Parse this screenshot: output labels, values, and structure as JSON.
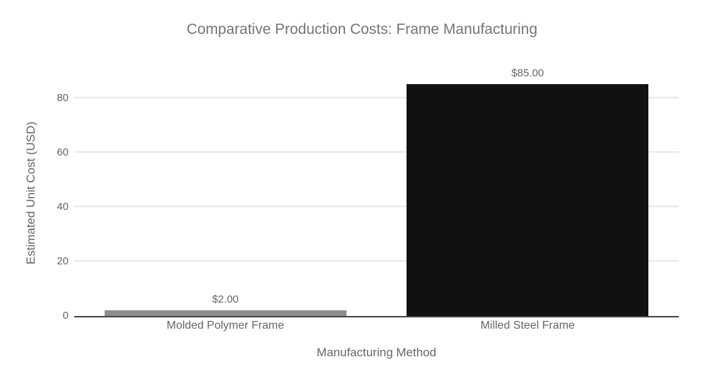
{
  "chart_data": {
    "type": "bar",
    "title": "Comparative Production Costs: Frame Manufacturing",
    "xlabel": "Manufacturing Method",
    "ylabel": "Estimated Unit Cost (USD)",
    "categories": [
      "Molded Polymer Frame",
      "Milled Steel Frame"
    ],
    "values": [
      2,
      85
    ],
    "value_labels": [
      "$2.00",
      "$85.00"
    ],
    "bar_colors": [
      "#8e8e8e",
      "#111111"
    ],
    "yticks": [
      0,
      20,
      40,
      60,
      80
    ],
    "ylim": [
      0,
      90
    ],
    "grid": "horizontal-only",
    "legend": "none"
  },
  "colors": {
    "background": "#ffffff",
    "title_text": "#757575",
    "axis_title_text": "#666666",
    "tick_text": "#666666",
    "gridline": "#e8e8e8",
    "axis_line": "#444444",
    "bar_molded_polymer": "#8e8e8e",
    "bar_milled_steel": "#111111"
  }
}
